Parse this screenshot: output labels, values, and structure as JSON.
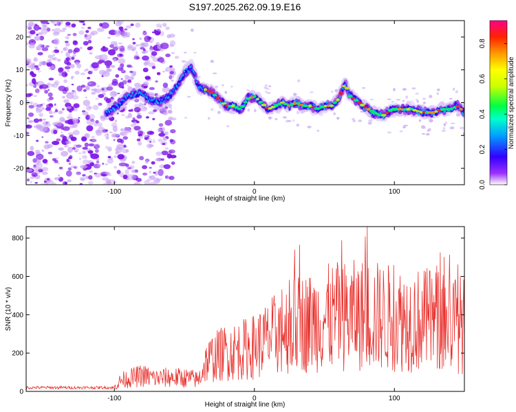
{
  "figure": {
    "title": "S197.2025.262.09.19.E16"
  },
  "chart_data": [
    {
      "type": "heatmap",
      "title": "",
      "xlabel": "Height of straight line (km)",
      "ylabel": "Frequency (Hz)",
      "xlim": [
        -163,
        150
      ],
      "ylim": [
        -25,
        25
      ],
      "xticks": [
        -100,
        0,
        100
      ],
      "yticks": [
        -20,
        -10,
        0,
        10,
        20
      ],
      "colorbar": {
        "label": "Normalized spectral amplitude",
        "range": [
          0,
          0.93
        ],
        "ticks": [
          "0.0",
          "0.2",
          "0.4",
          "0.6",
          "0.8"
        ],
        "tick_values": [
          0.0,
          0.2,
          0.4,
          0.6,
          0.8
        ],
        "colormap": [
          "#ffffff",
          "#7a00e6",
          "#0000ff",
          "#00e5ff",
          "#00ff44",
          "#ffff00",
          "#ff7700",
          "#ff0000",
          "#ff0088"
        ]
      },
      "ridge": {
        "name": "dominant frequency track",
        "x": [
          -105,
          -98,
          -90,
          -82,
          -75,
          -68,
          -60,
          -55,
          -50,
          -45,
          -40,
          -35,
          -30,
          -25,
          -20,
          -15,
          -10,
          -5,
          0,
          5,
          10,
          15,
          20,
          25,
          30,
          35,
          40,
          45,
          50,
          55,
          60,
          63,
          65,
          68,
          72,
          78,
          85,
          92,
          98,
          105,
          112,
          120,
          128,
          135,
          140,
          145,
          150
        ],
        "y": [
          -3,
          -1,
          2,
          3,
          1,
          0,
          2,
          5,
          9,
          11,
          5,
          4,
          3,
          1,
          -1,
          -1,
          -2,
          1,
          2,
          0,
          -2,
          -1,
          0,
          -1,
          0,
          -1,
          -1,
          -2,
          -1,
          -1,
          1,
          4,
          6,
          2,
          1,
          -1,
          -3,
          -4,
          -2,
          -2,
          -2,
          -3,
          -3,
          -2,
          -2,
          -1,
          -3
        ]
      }
    },
    {
      "type": "line",
      "title": "",
      "xlabel": "Height of straight line (km)",
      "ylabel": "SNR (10 * v/v)",
      "xlim": [
        -163,
        150
      ],
      "ylim": [
        0,
        860
      ],
      "xticks": [
        -100,
        0,
        100
      ],
      "yticks": [
        0,
        200,
        400,
        600,
        800
      ],
      "series": [
        {
          "name": "SNR",
          "color": "#e8322e",
          "envelope_x": [
            -163,
            -100,
            -95,
            -80,
            -70,
            -60,
            -45,
            -40,
            -35,
            -30,
            -20,
            -10,
            0,
            10,
            20,
            30,
            40,
            50,
            60,
            70,
            80,
            90,
            100,
            110,
            120,
            130,
            140,
            150
          ],
          "envelope_y": [
            22,
            22,
            60,
            85,
            70,
            75,
            70,
            60,
            150,
            180,
            210,
            220,
            240,
            280,
            330,
            360,
            370,
            390,
            400,
            405,
            410,
            400,
            390,
            385,
            380,
            380,
            370,
            360
          ]
        }
      ]
    }
  ]
}
